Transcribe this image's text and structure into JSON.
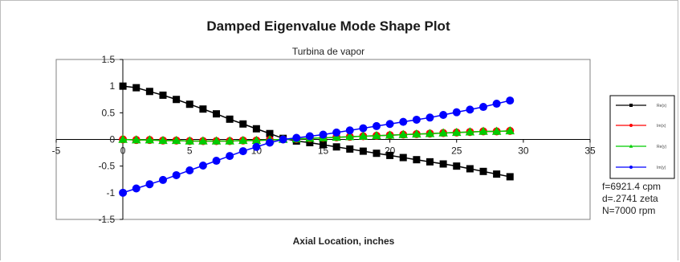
{
  "chart_data": {
    "type": "line",
    "title": "Damped Eigenvalue Mode Shape Plot",
    "subtitle": "Turbina de vapor",
    "xlabel": "Axial Location, inches",
    "ylabel": "",
    "xlim": [
      -5,
      35
    ],
    "ylim": [
      -1.5,
      1.5
    ],
    "x_ticks": [
      "-5",
      "0",
      "5",
      "10",
      "15",
      "20",
      "25",
      "30",
      "35"
    ],
    "y_ticks": [
      "1.5",
      "1",
      "0.5",
      "0",
      "-0.5",
      "-1",
      "-1.5"
    ],
    "x": [
      0,
      1,
      2,
      3,
      4,
      5,
      6,
      7,
      8,
      9,
      10,
      11,
      12,
      13,
      14,
      15,
      16,
      17,
      18,
      19,
      20,
      21,
      22,
      23,
      24,
      25,
      26,
      27,
      28,
      29
    ],
    "series": [
      {
        "name": "Re(x)",
        "color": "#000000",
        "marker": "square",
        "values": [
          1.0,
          0.97,
          0.9,
          0.83,
          0.75,
          0.66,
          0.57,
          0.48,
          0.38,
          0.29,
          0.2,
          0.11,
          0.02,
          -0.03,
          -0.06,
          -0.1,
          -0.14,
          -0.18,
          -0.22,
          -0.26,
          -0.3,
          -0.34,
          -0.38,
          -0.42,
          -0.46,
          -0.5,
          -0.55,
          -0.6,
          -0.65,
          -0.7
        ]
      },
      {
        "name": "Im(x)",
        "color": "#ff0000",
        "marker": "circle",
        "values": [
          0.0,
          -0.01,
          -0.01,
          -0.02,
          -0.02,
          -0.03,
          -0.03,
          -0.03,
          -0.03,
          -0.02,
          -0.02,
          -0.01,
          0.0,
          0.01,
          0.02,
          0.03,
          0.04,
          0.05,
          0.06,
          0.07,
          0.08,
          0.09,
          0.1,
          0.11,
          0.12,
          0.13,
          0.14,
          0.15,
          0.15,
          0.16
        ]
      },
      {
        "name": "Re(y)",
        "color": "#00cc00",
        "marker": "triangle",
        "values": [
          0.0,
          -0.01,
          -0.01,
          -0.02,
          -0.02,
          -0.03,
          -0.03,
          -0.03,
          -0.03,
          -0.02,
          -0.02,
          -0.01,
          0.0,
          0.01,
          0.02,
          0.03,
          0.04,
          0.05,
          0.06,
          0.07,
          0.08,
          0.09,
          0.1,
          0.11,
          0.12,
          0.13,
          0.14,
          0.15,
          0.15,
          0.16
        ]
      },
      {
        "name": "Im(y)",
        "color": "#0000ff",
        "marker": "circle",
        "values": [
          -1.0,
          -0.92,
          -0.84,
          -0.76,
          -0.67,
          -0.58,
          -0.49,
          -0.4,
          -0.31,
          -0.22,
          -0.14,
          -0.06,
          0.0,
          0.03,
          0.06,
          0.09,
          0.13,
          0.17,
          0.21,
          0.25,
          0.29,
          0.33,
          0.37,
          0.41,
          0.46,
          0.51,
          0.56,
          0.61,
          0.67,
          0.73
        ]
      }
    ],
    "legend_labels": [
      "Re(x)",
      "Im(x)",
      "Re(y)",
      "Im(y)"
    ],
    "legend_position": "right",
    "annotations": [
      "f=6921.4 cpm",
      "d=.2741 zeta",
      "N=7000 rpm"
    ],
    "grid": false,
    "plot_area_color": "#ffffff",
    "plot_border_color": "#808080",
    "axis_color": "#000000"
  }
}
